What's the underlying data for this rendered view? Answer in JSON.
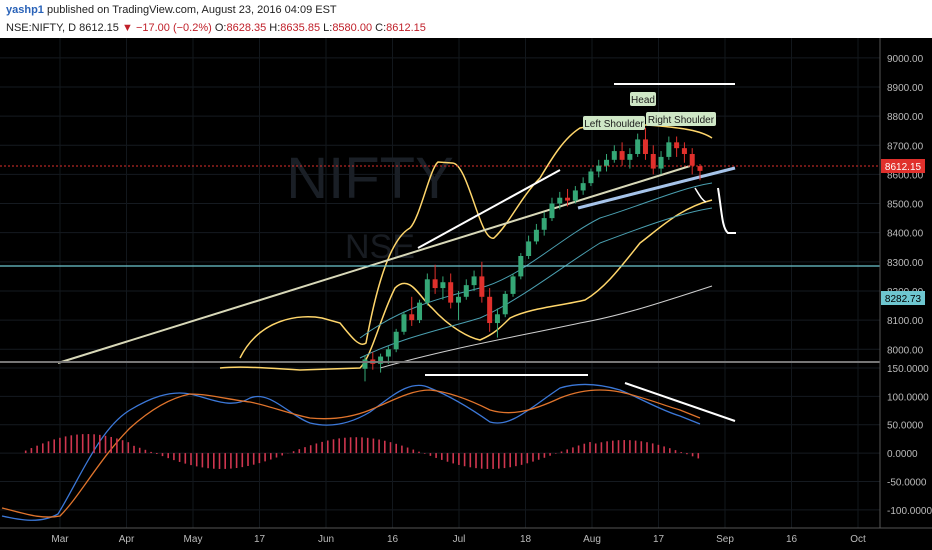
{
  "header": {
    "user": "yashp1",
    "published_text": "published on TradingView.com, August 23, 2016 04:09 EST"
  },
  "symbol_info": {
    "symbol": "NSE:NIFTY, D",
    "price": "8612.15",
    "change": "−17.00 (−0.2%)",
    "o_label": "O:",
    "o": "8628.35",
    "h_label": "H:",
    "h": "8635.85",
    "l_label": "L:",
    "l": "8580.00",
    "c_label": "C:",
    "c": "8612.15"
  },
  "watermark": "NIFTY",
  "watermark_sub": "NSE",
  "annotations": {
    "left_shoulder": "Left Shoulder",
    "head": "Head",
    "right_shoulder": "Right Shoulder"
  },
  "price_badges": {
    "last": "8612.15",
    "level": "8282.73"
  },
  "colors": {
    "candle_up": "#35a776",
    "candle_down": "#e0302c",
    "bollinger": "#ffd66b",
    "inner_band": "#4a9fb0",
    "macd_line": "#3c78d8",
    "signal_line": "#e0742c",
    "histogram": "#d0364f",
    "horizontal_level": "#6ec6d0",
    "neckline": "#a6c4ea"
  },
  "chart_data": {
    "type": "candlestick",
    "price_axis": {
      "ticks": [
        "9000.00",
        "8900.00",
        "8800.00",
        "8700.00",
        "8600.00",
        "8500.00",
        "8400.00",
        "8300.00",
        "8200.00",
        "8100.00",
        "8000.00"
      ],
      "range": [
        7970,
        9020
      ]
    },
    "macd_axis": {
      "ticks": [
        "150.0000",
        "100.0000",
        "50.0000",
        "0.0000",
        "-50.0000",
        "-100.0000"
      ],
      "range": [
        -125,
        150
      ]
    },
    "time_axis": {
      "ticks": [
        "Mar",
        "Apr",
        "May",
        "17",
        "Jun",
        "16",
        "Jul",
        "18",
        "Aug",
        "17",
        "Sep",
        "16",
        "Oct"
      ]
    },
    "horizontal_level": 8282.73,
    "last_price": 8612.15,
    "candles_estimated": [
      [
        7933,
        7980,
        7890,
        7965
      ],
      [
        7965,
        7990,
        7930,
        7950
      ],
      [
        7950,
        7985,
        7920,
        7975
      ],
      [
        7975,
        8010,
        7950,
        8000
      ],
      [
        8000,
        8070,
        7990,
        8060
      ],
      [
        8060,
        8130,
        8050,
        8120
      ],
      [
        8120,
        8180,
        8080,
        8100
      ],
      [
        8100,
        8170,
        8090,
        8160
      ],
      [
        8160,
        8260,
        8150,
        8240
      ],
      [
        8240,
        8290,
        8190,
        8210
      ],
      [
        8210,
        8250,
        8170,
        8230
      ],
      [
        8230,
        8260,
        8140,
        8160
      ],
      [
        8160,
        8200,
        8100,
        8180
      ],
      [
        8180,
        8240,
        8170,
        8220
      ],
      [
        8220,
        8270,
        8200,
        8250
      ],
      [
        8250,
        8300,
        8160,
        8180
      ],
      [
        8180,
        8210,
        8060,
        8090
      ],
      [
        8090,
        8140,
        8040,
        8120
      ],
      [
        8120,
        8200,
        8110,
        8190
      ],
      [
        8190,
        8260,
        8180,
        8250
      ],
      [
        8250,
        8330,
        8240,
        8320
      ],
      [
        8320,
        8390,
        8310,
        8370
      ],
      [
        8370,
        8430,
        8360,
        8410
      ],
      [
        8410,
        8470,
        8390,
        8450
      ],
      [
        8450,
        8520,
        8440,
        8500
      ],
      [
        8500,
        8540,
        8480,
        8520
      ],
      [
        8520,
        8550,
        8490,
        8510
      ],
      [
        8510,
        8560,
        8500,
        8545
      ],
      [
        8545,
        8590,
        8530,
        8570
      ],
      [
        8570,
        8620,
        8560,
        8610
      ],
      [
        8610,
        8650,
        8590,
        8630
      ],
      [
        8630,
        8670,
        8610,
        8650
      ],
      [
        8650,
        8700,
        8640,
        8680
      ],
      [
        8680,
        8710,
        8630,
        8650
      ],
      [
        8650,
        8690,
        8620,
        8670
      ],
      [
        8670,
        8740,
        8660,
        8720
      ],
      [
        8720,
        8760,
        8650,
        8670
      ],
      [
        8670,
        8700,
        8600,
        8620
      ],
      [
        8620,
        8680,
        8600,
        8660
      ],
      [
        8660,
        8730,
        8650,
        8710
      ],
      [
        8710,
        8730,
        8660,
        8690
      ],
      [
        8690,
        8710,
        8640,
        8670
      ],
      [
        8670,
        8690,
        8600,
        8630
      ],
      [
        8628.35,
        8635.85,
        8580,
        8612.15
      ]
    ]
  }
}
